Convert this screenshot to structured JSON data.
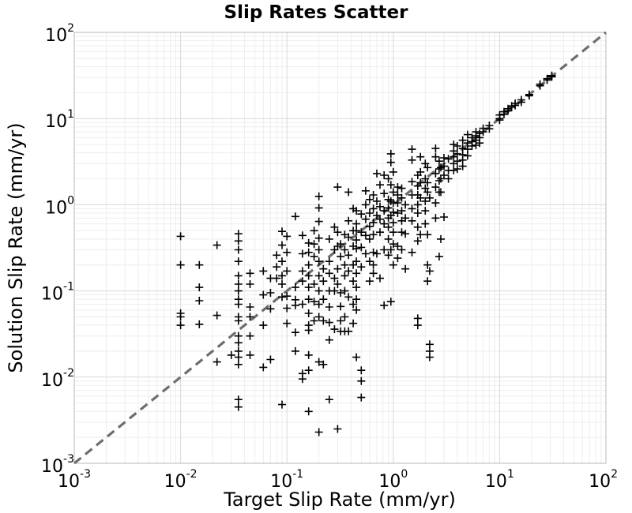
{
  "chart_data": {
    "type": "scatter",
    "title": "Slip Rates Scatter",
    "xlabel": "Target Slip Rate (mm/yr)",
    "ylabel": "Solution Slip Rate (mm/yr)",
    "x_scale": "log",
    "y_scale": "log",
    "xlim": [
      0.001,
      100
    ],
    "ylim": [
      0.001,
      100
    ],
    "grid": true,
    "marker": "plus",
    "marker_color": "#000000",
    "reference_line": {
      "style": "dashed",
      "color": "#6e6e6e",
      "x": [
        0.001,
        100
      ],
      "y": [
        0.001,
        100
      ]
    },
    "x_ticks": [
      {
        "value": 0.001,
        "base": "10",
        "exp": "-3"
      },
      {
        "value": 0.01,
        "base": "10",
        "exp": "-2"
      },
      {
        "value": 0.1,
        "base": "10",
        "exp": "-1"
      },
      {
        "value": 1,
        "base": "10",
        "exp": "0"
      },
      {
        "value": 10,
        "base": "10",
        "exp": "1"
      },
      {
        "value": 100,
        "base": "10",
        "exp": "2"
      }
    ],
    "y_ticks": [
      {
        "value": 0.001,
        "base": "10",
        "exp": "-3"
      },
      {
        "value": 0.01,
        "base": "10",
        "exp": "-2"
      },
      {
        "value": 0.1,
        "base": "10",
        "exp": "-1"
      },
      {
        "value": 1,
        "base": "10",
        "exp": "0"
      },
      {
        "value": 10,
        "base": "10",
        "exp": "1"
      },
      {
        "value": 100,
        "base": "10",
        "exp": "2"
      }
    ],
    "points": [
      [
        0.01,
        0.43
      ],
      [
        0.01,
        0.2
      ],
      [
        0.01,
        0.055
      ],
      [
        0.01,
        0.05
      ],
      [
        0.01,
        0.04
      ],
      [
        0.015,
        0.2
      ],
      [
        0.015,
        0.11
      ],
      [
        0.015,
        0.077
      ],
      [
        0.015,
        0.041
      ],
      [
        0.022,
        0.34
      ],
      [
        0.022,
        0.052
      ],
      [
        0.022,
        0.015
      ],
      [
        0.03,
        0.018
      ],
      [
        0.035,
        0.46
      ],
      [
        0.035,
        0.38
      ],
      [
        0.035,
        0.3
      ],
      [
        0.035,
        0.22
      ],
      [
        0.035,
        0.15
      ],
      [
        0.035,
        0.12
      ],
      [
        0.035,
        0.1
      ],
      [
        0.035,
        0.08
      ],
      [
        0.035,
        0.07
      ],
      [
        0.035,
        0.05
      ],
      [
        0.035,
        0.045
      ],
      [
        0.035,
        0.03
      ],
      [
        0.035,
        0.025
      ],
      [
        0.035,
        0.02
      ],
      [
        0.035,
        0.017
      ],
      [
        0.035,
        0.014
      ],
      [
        0.035,
        0.0055
      ],
      [
        0.035,
        0.0045
      ],
      [
        0.045,
        0.16
      ],
      [
        0.045,
        0.12
      ],
      [
        0.045,
        0.065
      ],
      [
        0.045,
        0.05
      ],
      [
        0.045,
        0.03
      ],
      [
        0.045,
        0.018
      ],
      [
        0.06,
        0.17
      ],
      [
        0.06,
        0.09
      ],
      [
        0.06,
        0.04
      ],
      [
        0.06,
        0.013
      ],
      [
        0.07,
        0.14
      ],
      [
        0.07,
        0.095
      ],
      [
        0.07,
        0.062
      ],
      [
        0.07,
        0.016
      ],
      [
        0.08,
        0.26
      ],
      [
        0.08,
        0.19
      ],
      [
        0.08,
        0.14
      ],
      [
        0.09,
        0.49
      ],
      [
        0.09,
        0.34
      ],
      [
        0.09,
        0.22
      ],
      [
        0.09,
        0.15
      ],
      [
        0.09,
        0.12
      ],
      [
        0.09,
        0.085
      ],
      [
        0.09,
        0.0048
      ],
      [
        0.1,
        0.43
      ],
      [
        0.1,
        0.28
      ],
      [
        0.1,
        0.17
      ],
      [
        0.1,
        0.087
      ],
      [
        0.1,
        0.063
      ],
      [
        0.1,
        0.042
      ],
      [
        0.12,
        0.73
      ],
      [
        0.12,
        0.11
      ],
      [
        0.12,
        0.079
      ],
      [
        0.12,
        0.068
      ],
      [
        0.12,
        0.033
      ],
      [
        0.12,
        0.02
      ],
      [
        0.14,
        0.44
      ],
      [
        0.14,
        0.27
      ],
      [
        0.14,
        0.17
      ],
      [
        0.14,
        0.13
      ],
      [
        0.14,
        0.07
      ],
      [
        0.14,
        0.011
      ],
      [
        0.14,
        0.0095
      ],
      [
        0.16,
        0.36
      ],
      [
        0.16,
        0.28
      ],
      [
        0.16,
        0.2
      ],
      [
        0.16,
        0.15
      ],
      [
        0.16,
        0.11
      ],
      [
        0.16,
        0.08
      ],
      [
        0.16,
        0.055
      ],
      [
        0.16,
        0.04
      ],
      [
        0.16,
        0.035
      ],
      [
        0.16,
        0.018
      ],
      [
        0.16,
        0.012
      ],
      [
        0.16,
        0.004
      ],
      [
        0.18,
        0.5
      ],
      [
        0.18,
        0.35
      ],
      [
        0.18,
        0.25
      ],
      [
        0.18,
        0.12
      ],
      [
        0.18,
        0.075
      ],
      [
        0.18,
        0.045
      ],
      [
        0.2,
        1.25
      ],
      [
        0.2,
        0.92
      ],
      [
        0.2,
        0.64
      ],
      [
        0.2,
        0.41
      ],
      [
        0.2,
        0.3
      ],
      [
        0.2,
        0.22
      ],
      [
        0.2,
        0.15
      ],
      [
        0.2,
        0.1
      ],
      [
        0.2,
        0.07
      ],
      [
        0.2,
        0.05
      ],
      [
        0.2,
        0.015
      ],
      [
        0.2,
        0.0023
      ],
      [
        0.22,
        0.18
      ],
      [
        0.22,
        0.13
      ],
      [
        0.22,
        0.08
      ],
      [
        0.22,
        0.045
      ],
      [
        0.22,
        0.014
      ],
      [
        0.25,
        0.4
      ],
      [
        0.25,
        0.22
      ],
      [
        0.25,
        0.16
      ],
      [
        0.25,
        0.1
      ],
      [
        0.25,
        0.065
      ],
      [
        0.25,
        0.043
      ],
      [
        0.25,
        0.027
      ],
      [
        0.25,
        0.0055
      ],
      [
        0.28,
        0.55
      ],
      [
        0.28,
        0.3
      ],
      [
        0.28,
        0.14
      ],
      [
        0.28,
        0.1
      ],
      [
        0.28,
        0.036
      ],
      [
        0.3,
        1.6
      ],
      [
        0.3,
        0.48
      ],
      [
        0.3,
        0.33
      ],
      [
        0.3,
        0.18
      ],
      [
        0.3,
        0.12
      ],
      [
        0.3,
        0.0025
      ],
      [
        0.32,
        0.35
      ],
      [
        0.32,
        0.25
      ],
      [
        0.32,
        0.095
      ],
      [
        0.32,
        0.066
      ],
      [
        0.32,
        0.045
      ],
      [
        0.32,
        0.034
      ],
      [
        0.35,
        0.45
      ],
      [
        0.35,
        0.3
      ],
      [
        0.35,
        0.2
      ],
      [
        0.35,
        0.15
      ],
      [
        0.35,
        0.1
      ],
      [
        0.35,
        0.05
      ],
      [
        0.35,
        0.034
      ],
      [
        0.38,
        1.4
      ],
      [
        0.38,
        0.65
      ],
      [
        0.38,
        0.42
      ],
      [
        0.38,
        0.26
      ],
      [
        0.38,
        0.17
      ],
      [
        0.38,
        0.085
      ],
      [
        0.38,
        0.034
      ],
      [
        0.42,
        0.9
      ],
      [
        0.42,
        0.5
      ],
      [
        0.42,
        0.33
      ],
      [
        0.42,
        0.2
      ],
      [
        0.42,
        0.13
      ],
      [
        0.42,
        0.07
      ],
      [
        0.42,
        0.042
      ],
      [
        0.45,
        0.85
      ],
      [
        0.45,
        0.6
      ],
      [
        0.45,
        0.5
      ],
      [
        0.45,
        0.39
      ],
      [
        0.45,
        0.31
      ],
      [
        0.45,
        0.22
      ],
      [
        0.45,
        0.16
      ],
      [
        0.45,
        0.11
      ],
      [
        0.45,
        0.08
      ],
      [
        0.45,
        0.06
      ],
      [
        0.45,
        0.017
      ],
      [
        0.5,
        0.78
      ],
      [
        0.5,
        0.48
      ],
      [
        0.5,
        0.32
      ],
      [
        0.5,
        0.19
      ],
      [
        0.5,
        0.012
      ],
      [
        0.5,
        0.009
      ],
      [
        0.5,
        0.0058
      ],
      [
        0.55,
        1.45
      ],
      [
        0.55,
        1.0
      ],
      [
        0.55,
        0.68
      ],
      [
        0.55,
        0.44
      ],
      [
        0.55,
        0.27
      ],
      [
        0.6,
        1.15
      ],
      [
        0.6,
        0.8
      ],
      [
        0.6,
        0.56
      ],
      [
        0.6,
        0.4
      ],
      [
        0.6,
        0.22
      ],
      [
        0.6,
        0.13
      ],
      [
        0.65,
        1.3
      ],
      [
        0.65,
        0.9
      ],
      [
        0.65,
        0.62
      ],
      [
        0.65,
        0.45
      ],
      [
        0.65,
        0.28
      ],
      [
        0.65,
        0.2
      ],
      [
        0.65,
        0.16
      ],
      [
        0.7,
        2.3
      ],
      [
        0.7,
        1.1
      ],
      [
        0.7,
        0.75
      ],
      [
        0.7,
        0.27
      ],
      [
        0.75,
        1.7
      ],
      [
        0.75,
        0.95
      ],
      [
        0.75,
        0.68
      ],
      [
        0.75,
        0.48
      ],
      [
        0.75,
        0.14
      ],
      [
        0.82,
        2.2
      ],
      [
        0.82,
        1.35
      ],
      [
        0.82,
        0.85
      ],
      [
        0.82,
        0.6
      ],
      [
        0.82,
        0.3
      ],
      [
        0.82,
        0.068
      ],
      [
        0.9,
        2.0
      ],
      [
        0.9,
        1.15
      ],
      [
        0.9,
        0.92
      ],
      [
        0.9,
        0.7
      ],
      [
        0.9,
        0.55
      ],
      [
        0.9,
        0.4
      ],
      [
        0.9,
        0.26
      ],
      [
        0.95,
        3.9
      ],
      [
        0.95,
        3.1
      ],
      [
        0.95,
        1.7
      ],
      [
        0.95,
        1.1
      ],
      [
        0.95,
        0.75
      ],
      [
        0.95,
        0.3
      ],
      [
        0.95,
        0.075
      ],
      [
        1.0,
        2.4
      ],
      [
        1.0,
        1.4
      ],
      [
        1.0,
        1.05
      ],
      [
        1.0,
        0.82
      ],
      [
        1.0,
        0.62
      ],
      [
        1.0,
        0.48
      ],
      [
        1.0,
        0.35
      ],
      [
        1.0,
        0.2
      ],
      [
        1.1,
        1.6
      ],
      [
        1.1,
        1.3
      ],
      [
        1.1,
        1.05
      ],
      [
        1.1,
        0.8
      ],
      [
        1.1,
        0.33
      ],
      [
        1.1,
        0.24
      ],
      [
        1.2,
        1.55
      ],
      [
        1.2,
        1.2
      ],
      [
        1.2,
        0.85
      ],
      [
        1.2,
        0.65
      ],
      [
        1.2,
        0.48
      ],
      [
        1.2,
        0.3
      ],
      [
        1.3,
        1.0
      ],
      [
        1.3,
        0.7
      ],
      [
        1.3,
        0.46
      ],
      [
        1.3,
        0.18
      ],
      [
        1.5,
        4.4
      ],
      [
        1.5,
        3.3
      ],
      [
        1.5,
        1.85
      ],
      [
        1.5,
        1.3
      ],
      [
        1.5,
        0.9
      ],
      [
        1.5,
        0.65
      ],
      [
        1.5,
        0.28
      ],
      [
        1.7,
        2.2
      ],
      [
        1.7,
        1.65
      ],
      [
        1.7,
        1.3
      ],
      [
        1.7,
        1.0
      ],
      [
        1.7,
        0.8
      ],
      [
        1.7,
        0.55
      ],
      [
        1.7,
        0.38
      ],
      [
        1.7,
        0.048
      ],
      [
        1.7,
        0.04
      ],
      [
        1.8,
        3.6
      ],
      [
        1.8,
        2.4
      ],
      [
        1.8,
        1.8
      ],
      [
        1.8,
        1.2
      ],
      [
        1.8,
        0.45
      ],
      [
        2.0,
        3.0
      ],
      [
        2.0,
        2.0
      ],
      [
        2.0,
        1.55
      ],
      [
        2.0,
        1.1
      ],
      [
        2.0,
        0.85
      ],
      [
        2.0,
        0.6
      ],
      [
        2.1,
        2.7
      ],
      [
        2.1,
        1.8
      ],
      [
        2.1,
        1.4
      ],
      [
        2.1,
        0.45
      ],
      [
        2.1,
        0.2
      ],
      [
        2.1,
        0.13
      ],
      [
        2.2,
        1.2
      ],
      [
        2.2,
        0.17
      ],
      [
        2.2,
        0.024
      ],
      [
        2.2,
        0.02
      ],
      [
        2.2,
        0.017
      ],
      [
        2.5,
        4.5
      ],
      [
        2.5,
        3.6
      ],
      [
        2.5,
        2.3
      ],
      [
        2.5,
        1.6
      ],
      [
        2.5,
        1.05
      ],
      [
        2.5,
        0.7
      ],
      [
        2.7,
        3.2
      ],
      [
        2.7,
        2.6
      ],
      [
        2.7,
        1.9
      ],
      [
        2.7,
        1.4
      ],
      [
        2.7,
        0.25
      ],
      [
        2.8,
        2.7
      ],
      [
        2.8,
        2.0
      ],
      [
        2.8,
        1.4
      ],
      [
        2.8,
        0.4
      ],
      [
        3.0,
        3.5
      ],
      [
        3.0,
        2.8
      ],
      [
        3.0,
        2.2
      ],
      [
        3.0,
        0.72
      ],
      [
        3.3,
        3.4
      ],
      [
        3.3,
        2.5
      ],
      [
        3.3,
        2.0
      ],
      [
        3.7,
        5.0
      ],
      [
        3.7,
        4.2
      ],
      [
        3.7,
        3.6
      ],
      [
        3.7,
        3.0
      ],
      [
        3.7,
        2.5
      ],
      [
        4.0,
        4.8
      ],
      [
        4.0,
        3.9
      ],
      [
        4.0,
        3.2
      ],
      [
        4.0,
        2.6
      ],
      [
        4.5,
        5.6
      ],
      [
        4.5,
        4.5
      ],
      [
        4.5,
        3.8
      ],
      [
        4.5,
        3.3
      ],
      [
        4.5,
        2.8
      ],
      [
        5.0,
        6.5
      ],
      [
        5.0,
        5.2
      ],
      [
        5.0,
        4.4
      ],
      [
        5.0,
        3.7
      ],
      [
        5.5,
        6.0
      ],
      [
        5.5,
        5.4
      ],
      [
        5.5,
        4.8
      ],
      [
        6.0,
        7.0
      ],
      [
        6.0,
        6.3
      ],
      [
        6.0,
        5.6
      ],
      [
        6.0,
        4.9
      ],
      [
        6.5,
        6.7
      ],
      [
        6.5,
        6.0
      ],
      [
        6.5,
        5.2
      ],
      [
        7.0,
        7.7
      ],
      [
        7.0,
        7.0
      ],
      [
        8.0,
        8.3
      ],
      [
        8.0,
        7.6
      ],
      [
        10.0,
        10.0
      ],
      [
        10.0,
        9.6
      ],
      [
        10.0,
        11.0
      ],
      [
        11.0,
        12.0
      ],
      [
        11.0,
        11.2
      ],
      [
        12.0,
        13.0
      ],
      [
        12.0,
        12.3
      ],
      [
        13.0,
        14.0
      ],
      [
        13.0,
        13.5
      ],
      [
        14.0,
        15.0
      ],
      [
        14.0,
        14.2
      ],
      [
        16.0,
        16.5
      ],
      [
        16.0,
        15.5
      ],
      [
        19.0,
        19.0
      ],
      [
        19.0,
        18.4
      ],
      [
        24.0,
        25.0
      ],
      [
        24.0,
        24.0
      ],
      [
        28.0,
        29.0
      ],
      [
        28.0,
        28.0
      ],
      [
        31.0,
        31.5
      ],
      [
        31.0,
        30.5
      ]
    ]
  }
}
